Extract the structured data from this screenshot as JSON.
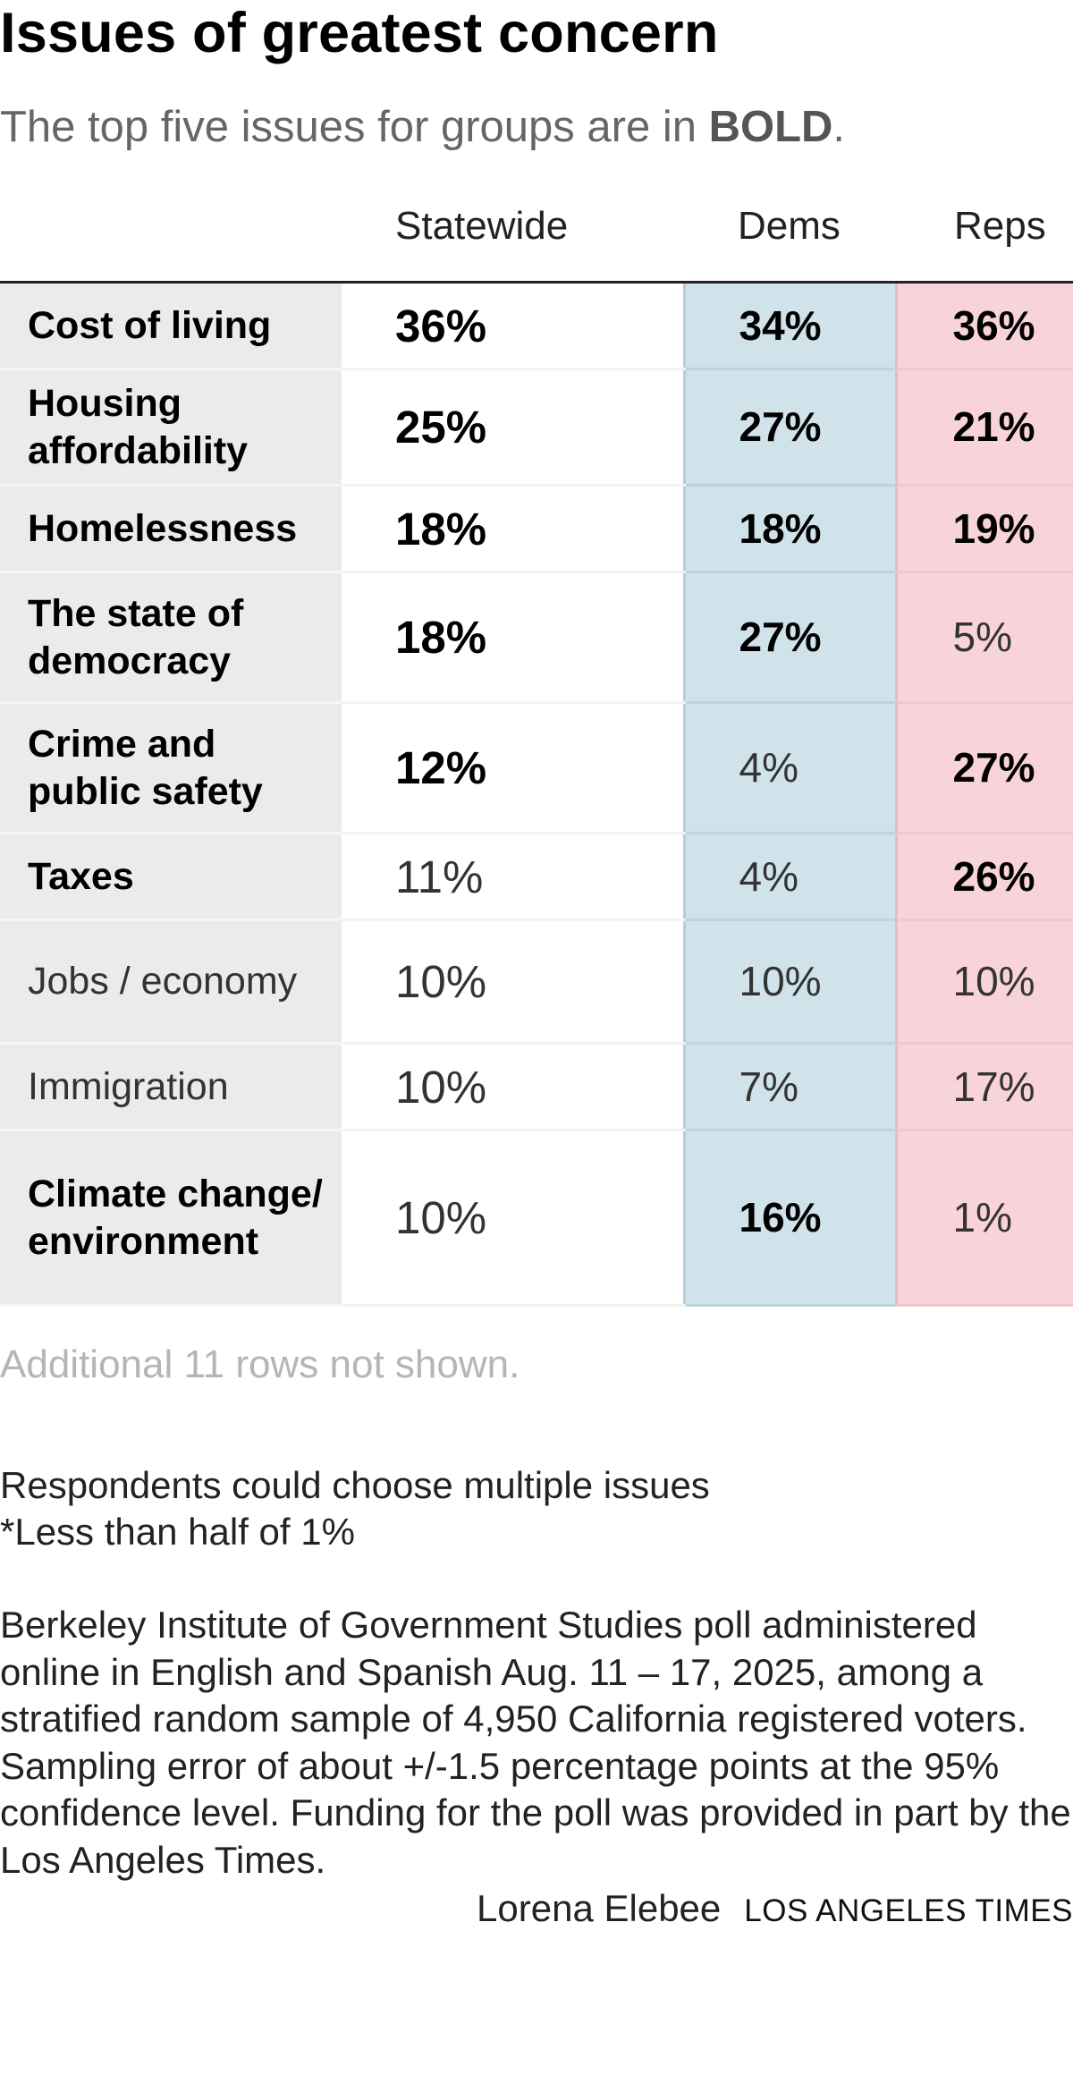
{
  "title": "Issues of greatest concern",
  "subtitle": {
    "text": "The top five issues for groups are in ",
    "bold_word": "BOLD",
    "end": "."
  },
  "chart_data": {
    "type": "table",
    "title": "Issues of greatest concern",
    "columns": [
      "",
      "Statewide",
      "Dems",
      "Reps"
    ],
    "column_colors": {
      "label": "#ebebeb",
      "statewide": "#ffffff",
      "dems": "#d0e3ea",
      "reps": "#f8d3d9"
    },
    "rows": [
      {
        "issue": "Cost of living",
        "issue_bold": true,
        "values": [
          {
            "text": "36%",
            "value": 36,
            "bold": true
          },
          {
            "text": "34%",
            "value": 34,
            "bold": true
          },
          {
            "text": "36%",
            "value": 36,
            "bold": true
          }
        ]
      },
      {
        "issue": "Housing affordability",
        "issue_bold": true,
        "values": [
          {
            "text": "25%",
            "value": 25,
            "bold": true
          },
          {
            "text": "27%",
            "value": 27,
            "bold": true
          },
          {
            "text": "21%",
            "value": 21,
            "bold": true
          }
        ]
      },
      {
        "issue": "Homelessness",
        "issue_bold": true,
        "values": [
          {
            "text": "18%",
            "value": 18,
            "bold": true
          },
          {
            "text": "18%",
            "value": 18,
            "bold": true
          },
          {
            "text": "19%",
            "value": 19,
            "bold": true
          }
        ]
      },
      {
        "issue": "The state of democracy",
        "issue_bold": true,
        "values": [
          {
            "text": "18%",
            "value": 18,
            "bold": true
          },
          {
            "text": "27%",
            "value": 27,
            "bold": true
          },
          {
            "text": "5%",
            "value": 5,
            "bold": false
          }
        ]
      },
      {
        "issue": "Crime and public safety",
        "issue_bold": true,
        "values": [
          {
            "text": "12%",
            "value": 12,
            "bold": true
          },
          {
            "text": "4%",
            "value": 4,
            "bold": false
          },
          {
            "text": "27%",
            "value": 27,
            "bold": true
          }
        ]
      },
      {
        "issue": "Taxes",
        "issue_bold": true,
        "values": [
          {
            "text": "11%",
            "value": 11,
            "bold": false
          },
          {
            "text": "4%",
            "value": 4,
            "bold": false
          },
          {
            "text": "26%",
            "value": 26,
            "bold": true
          }
        ]
      },
      {
        "issue": "Jobs / economy",
        "issue_bold": false,
        "values": [
          {
            "text": "10%",
            "value": 10,
            "bold": false
          },
          {
            "text": "10%",
            "value": 10,
            "bold": false
          },
          {
            "text": "10%",
            "value": 10,
            "bold": false
          }
        ]
      },
      {
        "issue": "Immigration",
        "issue_bold": false,
        "values": [
          {
            "text": "10%",
            "value": 10,
            "bold": false
          },
          {
            "text": "7%",
            "value": 7,
            "bold": false
          },
          {
            "text": "17%",
            "value": 17,
            "bold": false
          }
        ]
      },
      {
        "issue": "Climate change/ environment",
        "issue_bold": true,
        "values": [
          {
            "text": "10%",
            "value": 10,
            "bold": false
          },
          {
            "text": "16%",
            "value": 16,
            "bold": true
          },
          {
            "text": "1%",
            "value": 1,
            "bold": false
          }
        ]
      }
    ]
  },
  "more_rows": "Additional 11 rows not shown.",
  "notes": [
    "Respondents could choose multiple issues",
    "*Less than half of 1%"
  ],
  "source": "Berkeley Institute of Government Studies poll administered online in English and Spanish Aug. 11 – 17, 2025, among a stratified random sample of 4,950 California registered voters. Sampling error of about +/-1.5 percentage points at the 95% confidence level. Funding for the poll was provided in part by the Los Angeles Times.",
  "credit": {
    "author": "Lorena Elebee",
    "brand": "LOS ANGELES TIMES"
  }
}
